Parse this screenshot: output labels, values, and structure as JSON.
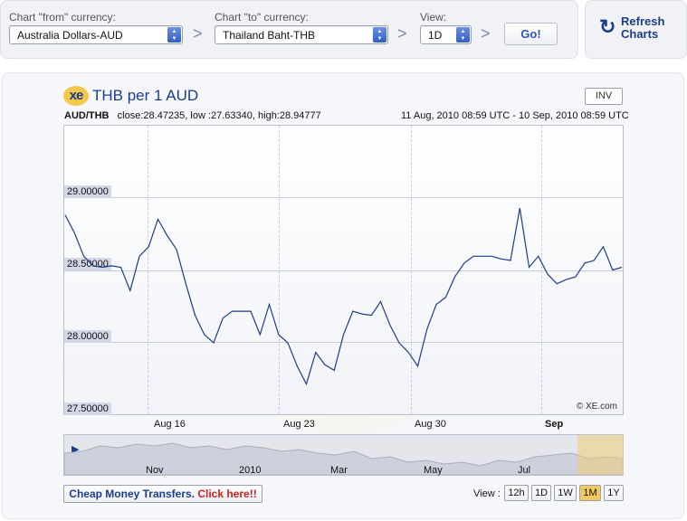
{
  "controls": {
    "from_label": "Chart \"from\" currency:",
    "from_value": "Australia Dollars-AUD",
    "to_label": "Chart \"to\" currency:",
    "to_value": "Thailand Baht-THB",
    "view_label": "View:",
    "view_value": "1D",
    "separator": ">",
    "go_label": "Go!"
  },
  "refresh": {
    "icon": "refresh-icon",
    "line1": "Refresh",
    "line2": "Charts"
  },
  "chart_header": {
    "logo": "xe",
    "title": "THB per 1 AUD",
    "inv_label": "INV",
    "pair": "AUD/THB",
    "stats": "close:28.47235, low :27.63340, high:28.94777",
    "range": "11 Aug, 2010 08:59 UTC - 10 Sep, 2010 08:59 UTC",
    "copyright": "© XE.com"
  },
  "chart_data": {
    "type": "line",
    "ylim": [
      27.4,
      29.5
    ],
    "yticks": [
      "29.00000",
      "28.50000",
      "28.00000",
      "27.50000"
    ],
    "xticks": [
      "Aug 16",
      "Aug 23",
      "Aug 30",
      "Sep"
    ],
    "grid": true,
    "series": [
      {
        "values": [
          28.85,
          28.72,
          28.55,
          28.48,
          28.47,
          28.48,
          28.47,
          28.3,
          28.55,
          28.62,
          28.82,
          28.7,
          28.6,
          28.35,
          28.12,
          27.98,
          27.92,
          28.1,
          28.15,
          28.15,
          28.15,
          27.98,
          28.2,
          27.98,
          27.92,
          27.75,
          27.62,
          27.85,
          27.76,
          27.72,
          27.98,
          28.15,
          28.13,
          28.12,
          28.22,
          28.05,
          27.92,
          27.85,
          27.75,
          28.02,
          28.2,
          28.25,
          28.4,
          28.5,
          28.55,
          28.55,
          28.55,
          28.53,
          28.52,
          28.9,
          28.47,
          28.55,
          28.42,
          28.35,
          28.38,
          28.4,
          28.5,
          28.52,
          28.62,
          28.45,
          28.47
        ]
      }
    ]
  },
  "navigator": {
    "labels": [
      "Nov",
      "2010",
      "Mar",
      "May",
      "Jul"
    ]
  },
  "footer": {
    "cheap_text": "Cheap Money Transfers.",
    "cheap_link": "Click here!!",
    "view_label": "View :",
    "ranges": [
      "12h",
      "1D",
      "1W",
      "1M",
      "1Y"
    ],
    "active_range": "1M"
  }
}
